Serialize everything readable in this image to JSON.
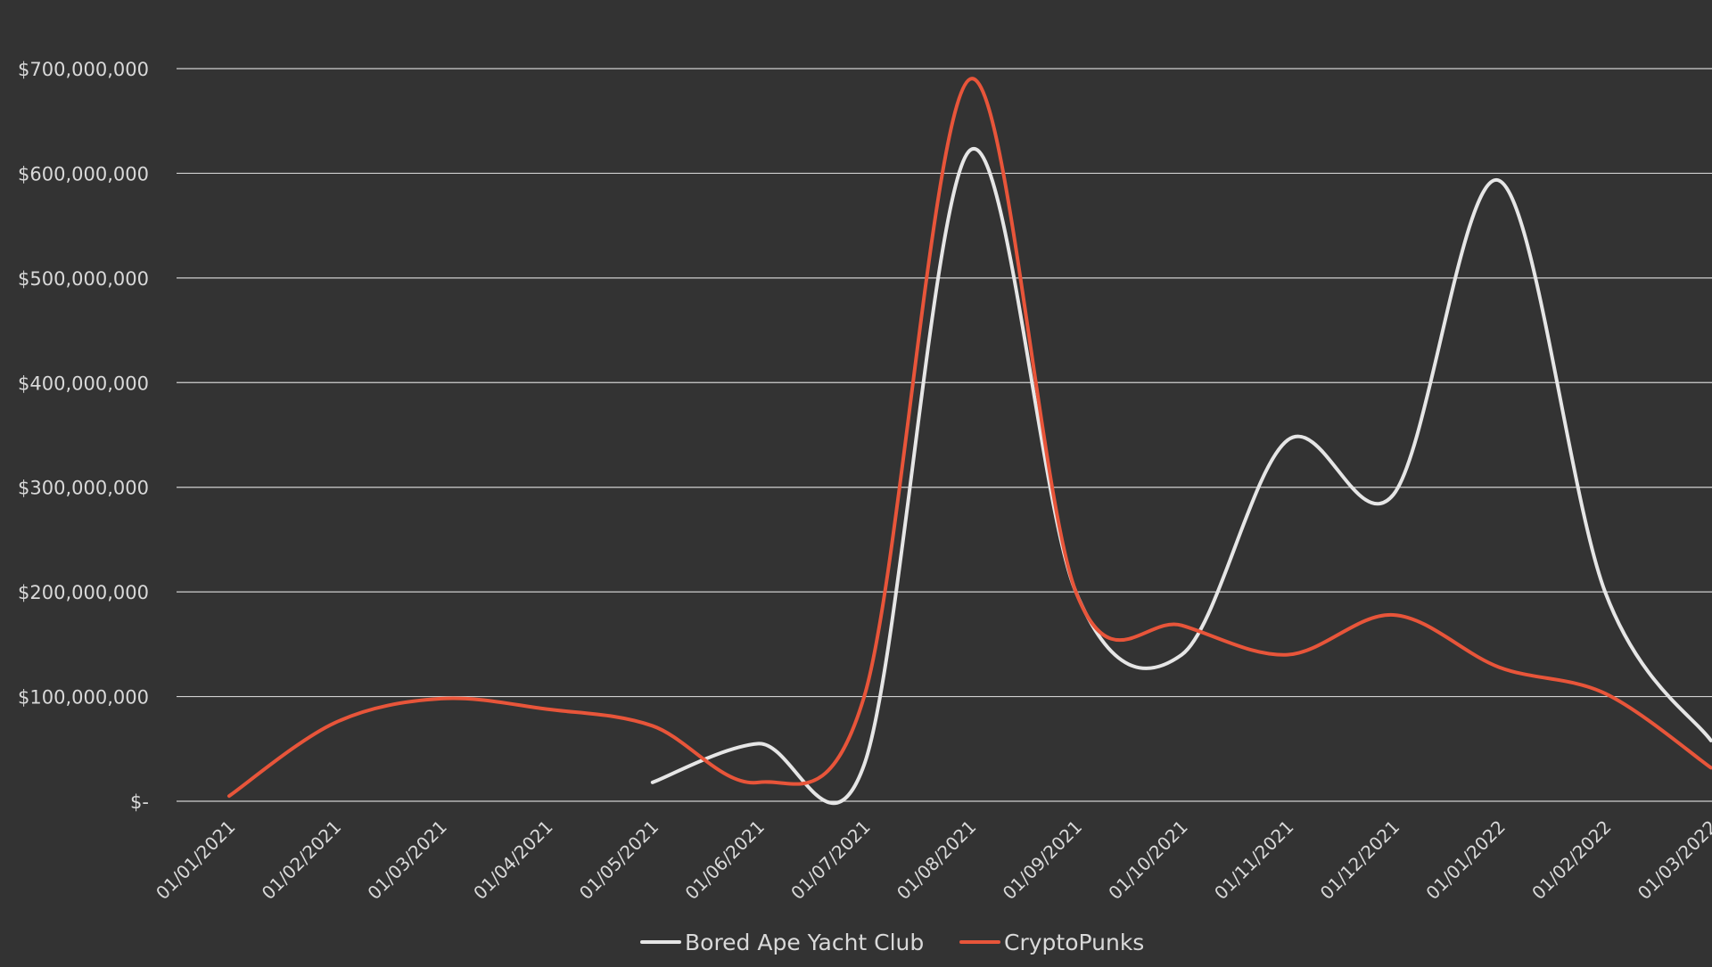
{
  "chart_data": {
    "type": "line",
    "title": "",
    "xlabel": "",
    "ylabel": "",
    "categories": [
      "01/01/2021",
      "01/02/2021",
      "01/03/2021",
      "01/04/2021",
      "01/05/2021",
      "01/06/2021",
      "01/07/2021",
      "01/08/2021",
      "01/09/2021",
      "01/10/2021",
      "01/11/2021",
      "01/12/2021",
      "01/01/2022",
      "01/02/2022",
      "01/03/2022"
    ],
    "ylim": [
      0,
      700000000
    ],
    "y_ticks": [
      {
        "value": 0,
        "label": "$-"
      },
      {
        "value": 100000000,
        "label": "$100,000,000"
      },
      {
        "value": 200000000,
        "label": "$200,000,000"
      },
      {
        "value": 300000000,
        "label": "$300,000,000"
      },
      {
        "value": 400000000,
        "label": "$400,000,000"
      },
      {
        "value": 500000000,
        "label": "$500,000,000"
      },
      {
        "value": 600000000,
        "label": "$600,000,000"
      },
      {
        "value": 700000000,
        "label": "$700,000,000"
      }
    ],
    "grid": true,
    "legend_position": "bottom",
    "series": [
      {
        "name": "Bored Ape Yacht Club",
        "color": "#e6e6e6",
        "values": [
          null,
          null,
          null,
          null,
          18000000,
          55000000,
          35000000,
          622000000,
          200000000,
          140000000,
          345000000,
          293000000,
          593000000,
          200000000,
          58000000
        ]
      },
      {
        "name": "CryptoPunks",
        "color": "#e8553a",
        "values": [
          5000000,
          75000000,
          98000000,
          88000000,
          72000000,
          18000000,
          100000000,
          690000000,
          200000000,
          168000000,
          140000000,
          178000000,
          128000000,
          103000000,
          32000000
        ]
      }
    ]
  },
  "colors": {
    "background": "#333333",
    "grid": "#d0d0d0",
    "text": "#d9d9d9"
  }
}
